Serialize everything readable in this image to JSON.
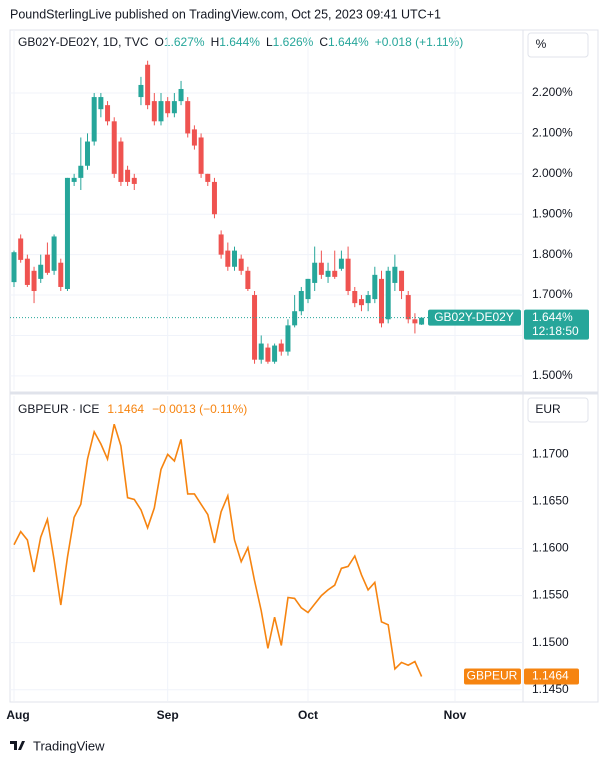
{
  "header": "PoundSterlingLive published on TradingView.com, Oct 25, 2023 09:41 UTC+1",
  "footer": "TradingView",
  "chart_data": [
    {
      "type": "candlestick",
      "title": "GB02Y-DE02Y, 1D, TVC",
      "ohlc_header": [
        {
          "key": "O",
          "value": "1.627%"
        },
        {
          "key": "H",
          "value": "1.644%"
        },
        {
          "key": "L",
          "value": "1.626%"
        },
        {
          "key": "C",
          "value": "1.644%"
        }
      ],
      "change": "+0.018 (+1.11%)",
      "unit": "%",
      "price_tag": {
        "label": "GB02Y-DE02Y",
        "value_label": "1.644%",
        "countdown": "12:18:50"
      },
      "up_color": "#26a69a",
      "down_color": "#ef5350",
      "categories": [
        "Aug",
        null,
        null,
        null,
        null,
        null,
        null,
        null,
        null,
        null,
        null,
        null,
        null,
        null,
        null,
        null,
        null,
        null,
        null,
        null,
        null,
        null,
        null,
        "Sep",
        null,
        null,
        null,
        null,
        null,
        null,
        null,
        null,
        null,
        null,
        null,
        null,
        null,
        null,
        null,
        null,
        null,
        null,
        null,
        null,
        "Oct",
        null,
        null,
        null,
        null,
        null,
        null,
        null,
        null,
        null,
        null,
        null,
        null,
        null,
        null,
        null,
        null,
        null,
        null,
        null,
        null,
        null,
        "Nov"
      ],
      "open": [
        1.732,
        1.84,
        1.79,
        1.76,
        1.74,
        1.8,
        1.76,
        1.78,
        1.715,
        1.98,
        1.99,
        2.02,
        2.08,
        2.16,
        2.17,
        2.13,
        2.08,
        2.01,
        1.99,
        2.19,
        2.27,
        2.18,
        2.13,
        2.18,
        2.15,
        2.18,
        2.18,
        2.11,
        2.09,
        2.0,
        1.98,
        1.85,
        1.81,
        1.77,
        1.79,
        1.76,
        1.7,
        1.54,
        1.57,
        1.535,
        1.58,
        1.56,
        1.625,
        1.66,
        1.69,
        1.73,
        1.78,
        1.745,
        1.76,
        1.765,
        1.79,
        1.71,
        1.69,
        1.68,
        1.69,
        1.74,
        1.64,
        1.73,
        1.76,
        1.7,
        1.64,
        1.627,
        null,
        null,
        null,
        null,
        null
      ],
      "high": [
        1.81,
        1.85,
        1.8,
        1.77,
        1.8,
        1.83,
        1.85,
        1.79,
        1.99,
        2.0,
        2.09,
        2.1,
        2.2,
        2.2,
        2.18,
        2.14,
        2.09,
        2.02,
        2.0,
        2.24,
        2.28,
        2.2,
        2.2,
        2.19,
        2.2,
        2.23,
        2.19,
        2.12,
        2.1,
        2.0,
        1.99,
        1.86,
        1.83,
        1.82,
        1.8,
        1.77,
        1.71,
        1.6,
        1.58,
        1.58,
        1.59,
        1.64,
        1.7,
        1.72,
        1.74,
        1.82,
        1.81,
        1.78,
        1.81,
        1.81,
        1.82,
        1.72,
        1.7,
        1.71,
        1.77,
        1.76,
        1.77,
        1.8,
        1.76,
        1.71,
        1.655,
        1.644,
        null,
        null,
        null,
        null,
        null
      ],
      "low": [
        1.72,
        1.78,
        1.72,
        1.68,
        1.73,
        1.75,
        1.75,
        1.71,
        1.71,
        1.97,
        1.96,
        2.01,
        2.07,
        2.14,
        2.12,
        1.99,
        1.97,
        1.97,
        1.96,
        2.17,
        2.16,
        2.12,
        2.12,
        2.14,
        2.14,
        2.17,
        2.09,
        2.06,
        1.99,
        1.97,
        1.89,
        1.79,
        1.76,
        1.76,
        1.75,
        1.71,
        1.53,
        1.53,
        1.53,
        1.53,
        1.55,
        1.55,
        1.62,
        1.65,
        1.68,
        1.71,
        1.74,
        1.73,
        1.74,
        1.76,
        1.7,
        1.67,
        1.66,
        1.66,
        1.68,
        1.62,
        1.63,
        1.71,
        1.69,
        1.63,
        1.605,
        1.626,
        null,
        null,
        null,
        null,
        null
      ],
      "close": [
        1.806,
        1.787,
        1.725,
        1.71,
        1.775,
        1.755,
        1.845,
        1.72,
        1.99,
        1.99,
        2.02,
        2.08,
        2.19,
        2.19,
        2.13,
        2.0,
        1.98,
        1.98,
        1.975,
        2.22,
        2.17,
        2.13,
        2.18,
        2.15,
        2.18,
        2.21,
        2.1,
        2.07,
        2.0,
        1.98,
        1.9,
        1.8,
        1.77,
        1.81,
        1.76,
        1.715,
        1.54,
        1.58,
        1.535,
        1.575,
        1.56,
        1.625,
        1.66,
        1.71,
        1.74,
        1.78,
        1.75,
        1.76,
        1.745,
        1.79,
        1.71,
        1.68,
        1.675,
        1.7,
        1.75,
        1.63,
        1.76,
        1.77,
        1.71,
        1.64,
        1.63,
        1.644,
        null,
        null,
        null,
        null,
        null
      ],
      "ylim": [
        1.465,
        2.356
      ],
      "yticks": [
        {
          "value": 1.5,
          "label": "1.500%"
        },
        {
          "value": 1.6,
          "label": "1.600%"
        },
        {
          "value": 1.7,
          "label": "1.700%"
        },
        {
          "value": 1.8,
          "label": "1.800%"
        },
        {
          "value": 1.9,
          "label": "1.900%"
        },
        {
          "value": 2.0,
          "label": "2.000%"
        },
        {
          "value": 2.1,
          "label": "2.100%"
        },
        {
          "value": 2.2,
          "label": "2.200%"
        }
      ],
      "grid": true
    },
    {
      "type": "line",
      "title": "GBPEUR · ICE",
      "last": "1.1464",
      "change": "−0.0013 (−0.11%)",
      "unit": "EUR",
      "price_tag": {
        "label": "GBPEUR",
        "value_label": "1.1464"
      },
      "color": "#f68410",
      "categories": [
        "Aug",
        null,
        null,
        null,
        null,
        null,
        null,
        null,
        null,
        null,
        null,
        null,
        null,
        null,
        null,
        null,
        null,
        null,
        null,
        null,
        null,
        null,
        null,
        "Sep",
        null,
        null,
        null,
        null,
        null,
        null,
        null,
        null,
        null,
        null,
        null,
        null,
        null,
        null,
        null,
        null,
        null,
        null,
        null,
        null,
        "Oct",
        null,
        null,
        null,
        null,
        null,
        null,
        null,
        null,
        null,
        null,
        null,
        null,
        null,
        null,
        null,
        null,
        null,
        null,
        null,
        null,
        null,
        "Nov"
      ],
      "values": [
        1.1604,
        1.1618,
        1.1609,
        1.1575,
        1.1612,
        1.1631,
        1.1588,
        1.154,
        1.1591,
        1.1633,
        1.1647,
        1.1695,
        1.1724,
        1.1711,
        1.1695,
        1.1732,
        1.1709,
        1.1654,
        1.1652,
        1.1641,
        1.1622,
        1.1643,
        1.1684,
        1.17,
        1.1693,
        1.1716,
        1.1658,
        1.1658,
        1.1647,
        1.1636,
        1.1606,
        1.1639,
        1.1656,
        1.1609,
        1.1586,
        1.1601,
        1.1566,
        1.1534,
        1.1494,
        1.1527,
        1.1497,
        1.1548,
        1.1547,
        1.1537,
        1.1532,
        1.1541,
        1.155,
        1.1556,
        1.1561,
        1.1579,
        1.1581,
        1.1592,
        1.1572,
        1.1556,
        1.1564,
        1.1522,
        1.1519,
        1.1472,
        1.1479,
        1.1476,
        1.148,
        1.1464,
        null,
        null,
        null,
        null,
        null
      ],
      "ylim": [
        1.1438,
        1.1762
      ],
      "yticks": [
        {
          "value": 1.145,
          "label": "1.1450"
        },
        {
          "value": 1.15,
          "label": "1.1500"
        },
        {
          "value": 1.155,
          "label": "1.1550"
        },
        {
          "value": 1.16,
          "label": "1.1600"
        },
        {
          "value": 1.165,
          "label": "1.1650"
        },
        {
          "value": 1.17,
          "label": "1.1700"
        }
      ],
      "grid": true
    }
  ]
}
